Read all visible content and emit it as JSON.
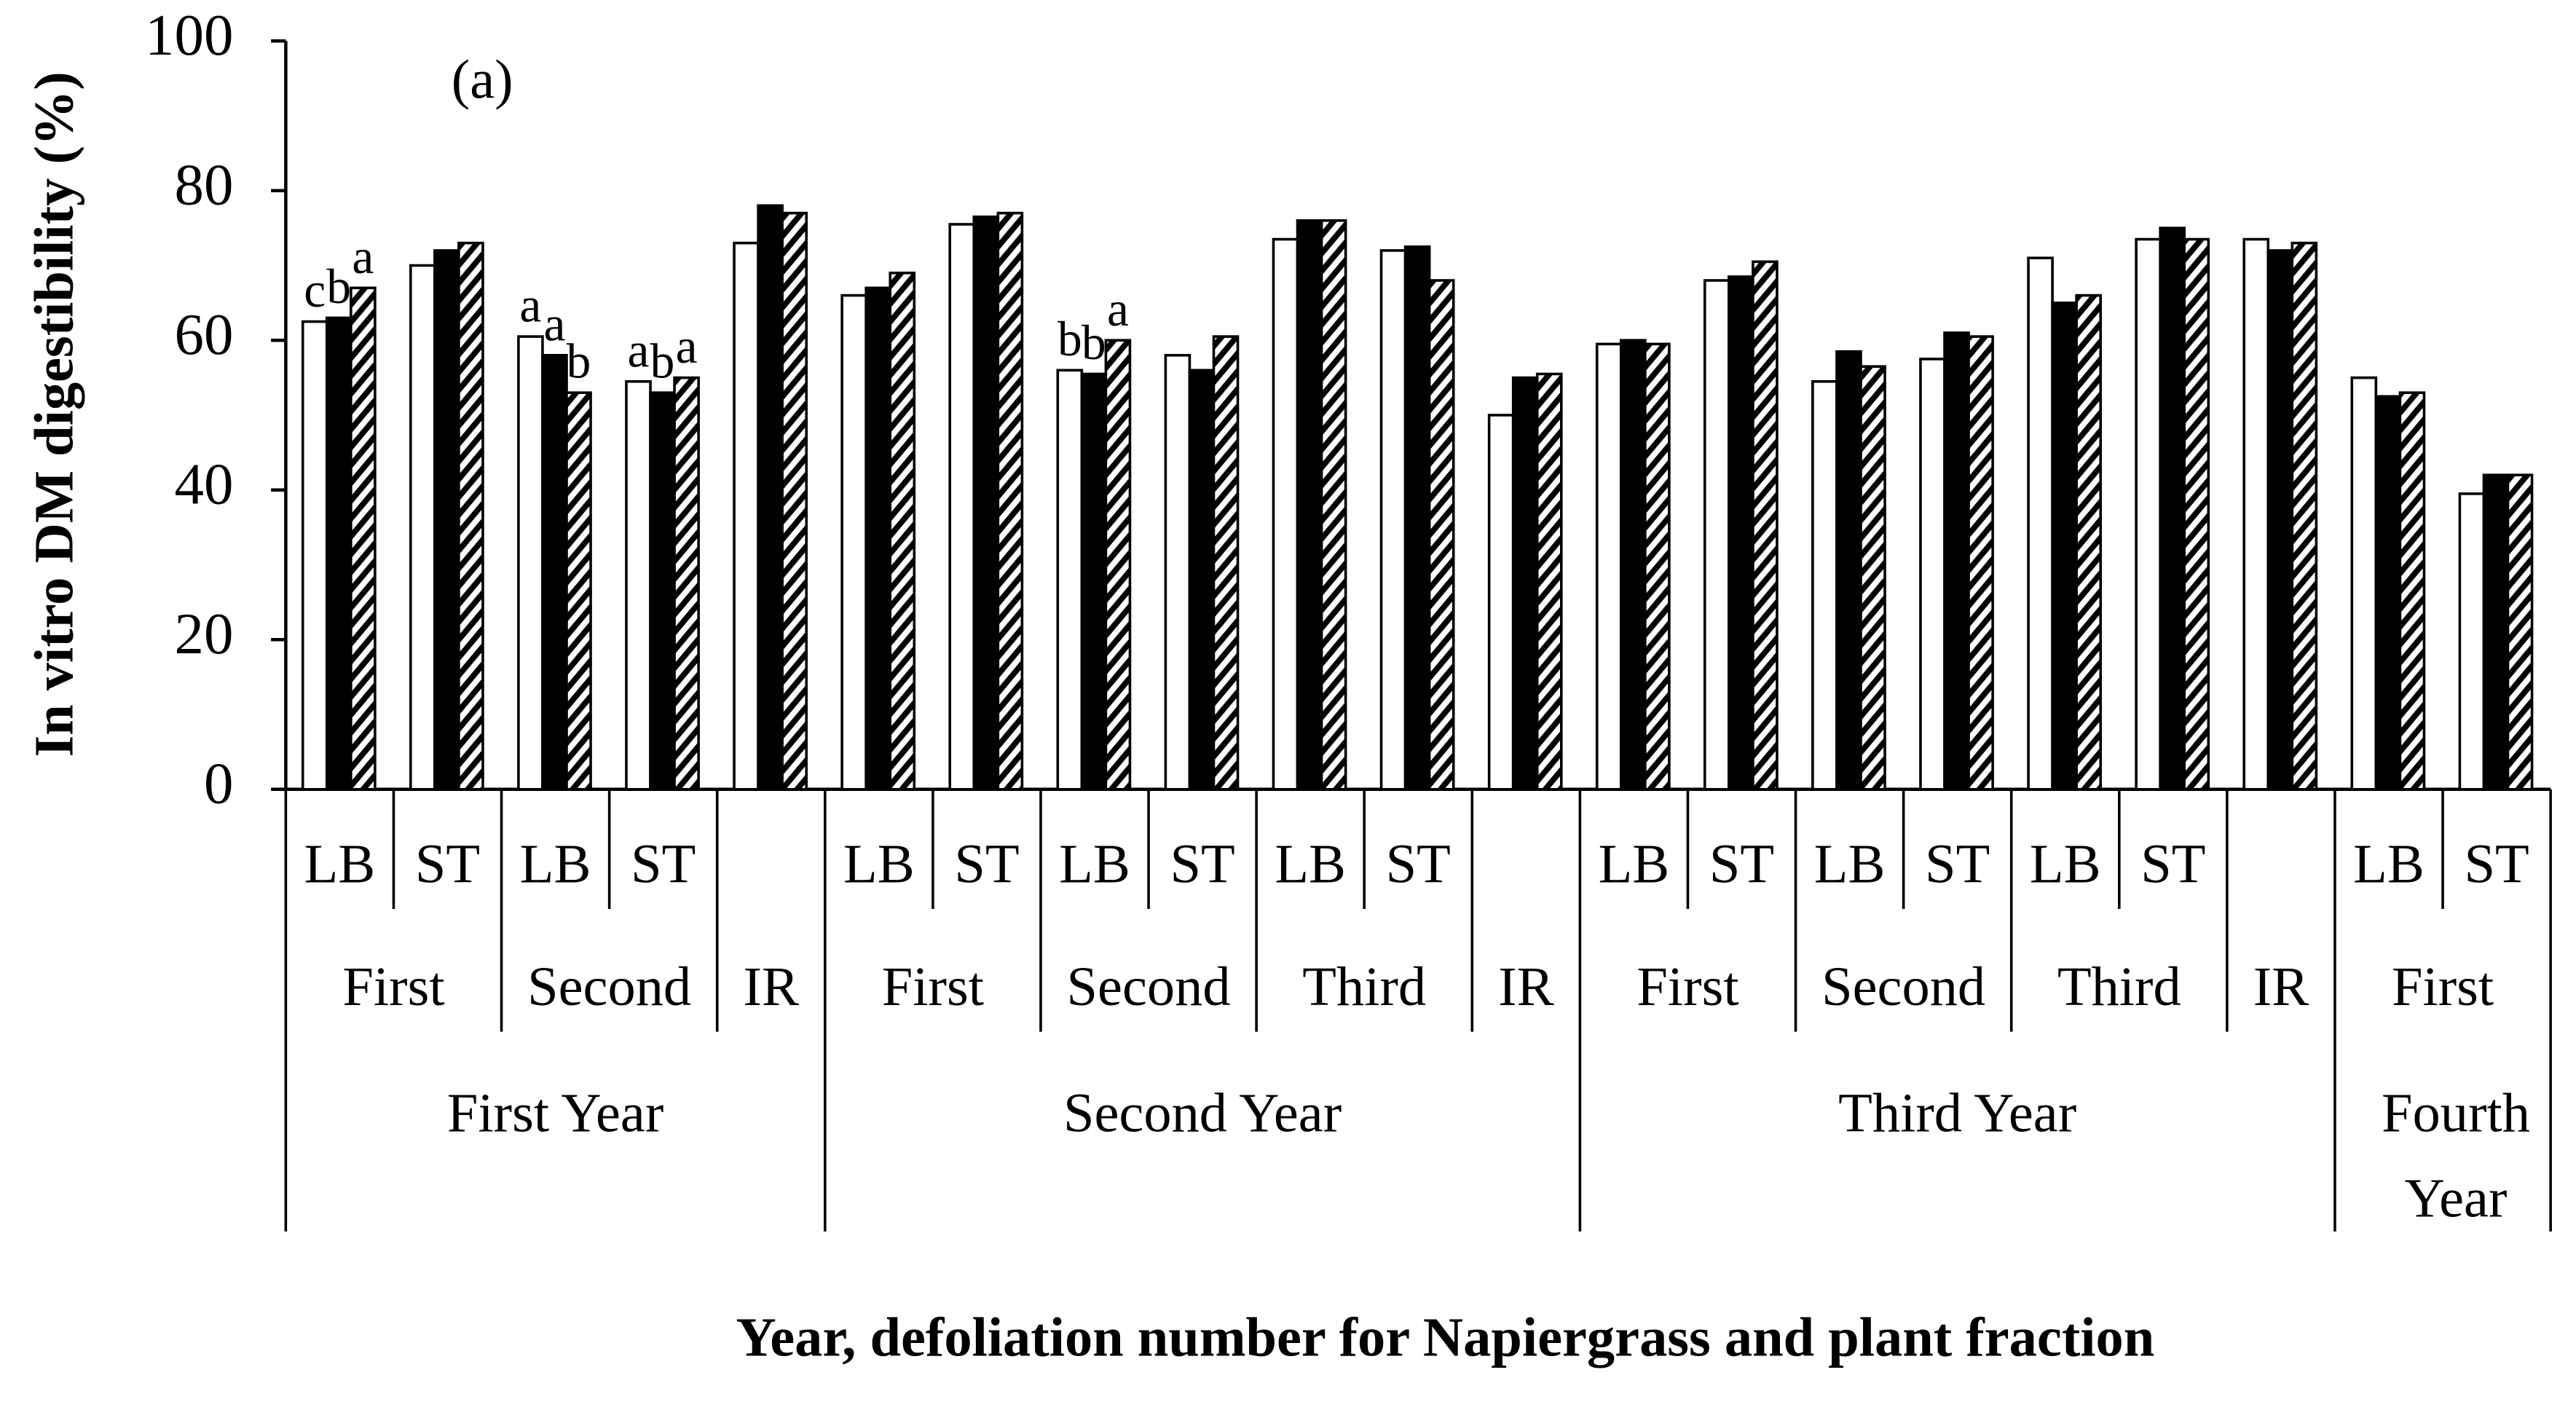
{
  "chart_data": {
    "type": "bar",
    "annotation": "(a)",
    "y_label": "In vitro DM digestibility (%)",
    "x_label": "Year, defoliation number for Napiergrass and plant fraction",
    "categories": [
      "LB",
      "ST",
      "LB",
      "ST",
      null,
      "LB",
      "ST",
      "LB",
      "ST",
      "LB",
      "ST",
      null,
      "LB",
      "ST",
      "LB",
      "ST",
      "LB",
      "ST",
      null,
      "LB",
      "ST"
    ],
    "defoliation": [
      "First",
      "First",
      "Second",
      "Second",
      "IR",
      "First",
      "First",
      "Second",
      "Second",
      "Third",
      "Third",
      "IR",
      "First",
      "First",
      "Second",
      "Second",
      "Third",
      "Third",
      "IR",
      "First",
      "First"
    ],
    "years": [
      "First Year",
      "First Year",
      "First Year",
      "First Year",
      "First Year",
      "Second Year",
      "Second Year",
      "Second Year",
      "Second Year",
      "Second Year",
      "Second Year",
      "Second Year",
      "Third Year",
      "Third Year",
      "Third Year",
      "Third Year",
      "Third Year",
      "Third Year",
      "Third Year",
      "Fourth Year",
      "Fourth Year"
    ],
    "series": [
      {
        "color": "#ffffff",
        "values": [
          62.5,
          70,
          60.5,
          54.5,
          73,
          66,
          75.5,
          56,
          58,
          73.5,
          72,
          50,
          59.5,
          68,
          54.5,
          57.5,
          71,
          73.5,
          73.5,
          55,
          39.5
        ],
        "letters": [
          "c",
          null,
          "a",
          "a",
          null,
          null,
          null,
          "b",
          null,
          null,
          null,
          null,
          null,
          null,
          null,
          null,
          null,
          null,
          null,
          null,
          null
        ]
      },
      {
        "color": "#000000",
        "values": [
          63,
          72,
          58,
          53,
          78,
          67,
          76.5,
          55.5,
          56,
          76,
          72.5,
          55,
          60,
          68.5,
          58.5,
          61,
          65,
          75,
          72,
          52.5,
          42
        ],
        "letters": [
          "b",
          null,
          "a",
          "b",
          null,
          null,
          null,
          "b",
          null,
          null,
          null,
          null,
          null,
          null,
          null,
          null,
          null,
          null,
          null,
          null,
          null
        ]
      },
      {
        "color": "#000000",
        "pattern": "hatch",
        "values": [
          67,
          73,
          53,
          55,
          77,
          69,
          77,
          60,
          60.5,
          76,
          68,
          55.5,
          59.5,
          70.5,
          56.5,
          60.5,
          66,
          73.5,
          73,
          53,
          42
        ],
        "letters": [
          "a",
          null,
          "b",
          "a",
          null,
          null,
          null,
          "a",
          null,
          null,
          null,
          null,
          null,
          null,
          null,
          null,
          null,
          null,
          null,
          null,
          null
        ]
      }
    ],
    "ylim": [
      0,
      100
    ],
    "yticks": [
      0,
      20,
      40,
      60,
      80,
      100
    ]
  }
}
